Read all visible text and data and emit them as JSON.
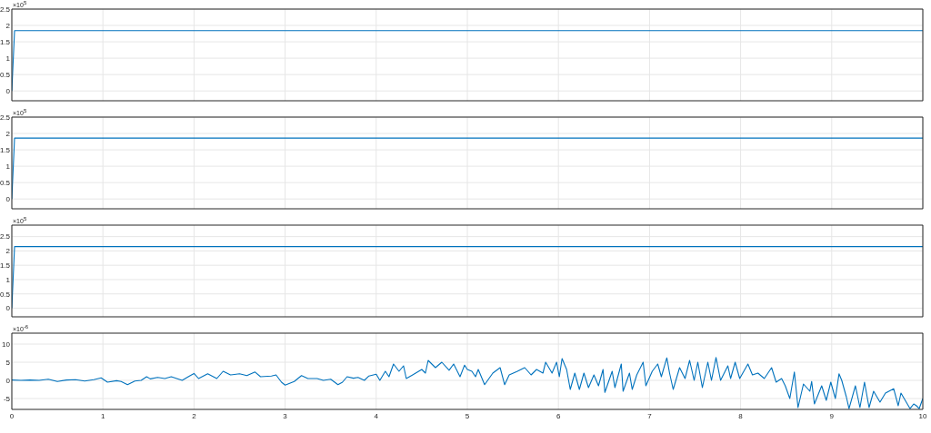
{
  "chart_data": [
    {
      "type": "line",
      "x": [
        0,
        0.03,
        10
      ],
      "values": [
        0,
        1.84,
        1.84
      ],
      "color": "#0072bd",
      "xlim": [
        0,
        10
      ],
      "xticks": [
        0,
        1,
        2,
        3,
        4,
        5,
        6,
        7,
        8,
        9,
        10
      ],
      "ylim": [
        -0.3,
        2.5
      ],
      "yticks": [
        0,
        0.5,
        1,
        1.5,
        2,
        2.5
      ],
      "grid": true,
      "tick_labels": "y",
      "annotations": [
        "×10$^{5}$"
      ]
    },
    {
      "type": "line",
      "x": [
        0,
        0.03,
        10
      ],
      "values": [
        0,
        1.86,
        1.86
      ],
      "color": "#0072bd",
      "xlim": [
        0,
        10
      ],
      "xticks": [
        0,
        1,
        2,
        3,
        4,
        5,
        6,
        7,
        8,
        9,
        10
      ],
      "ylim": [
        -0.3,
        2.5
      ],
      "yticks": [
        0,
        0.5,
        1,
        1.5,
        2,
        2.5
      ],
      "grid": true,
      "tick_labels": "y",
      "annotations": [
        "×10$^{5}$"
      ]
    },
    {
      "type": "line",
      "x": [
        0,
        0.03,
        10
      ],
      "values": [
        0,
        2.15,
        2.15
      ],
      "color": "#0072bd",
      "xlim": [
        0,
        10
      ],
      "xticks": [
        0,
        1,
        2,
        3,
        4,
        5,
        6,
        7,
        8,
        9,
        10
      ],
      "ylim": [
        -0.3,
        2.9
      ],
      "yticks": [
        0,
        0.5,
        1,
        1.5,
        2,
        2.5
      ],
      "grid": true,
      "tick_labels": "y",
      "annotations": [
        "×10$^{5}$"
      ]
    },
    {
      "type": "line",
      "x": [
        0,
        0.1,
        0.2,
        0.3,
        0.4,
        0.5,
        0.6,
        0.7,
        0.8,
        0.9,
        0.98,
        1.05,
        1.15,
        1.2,
        1.27,
        1.35,
        1.42,
        1.48,
        1.52,
        1.6,
        1.68,
        1.75,
        1.87,
        1.95,
        2.0,
        2.05,
        2.15,
        2.25,
        2.32,
        2.4,
        2.5,
        2.58,
        2.67,
        2.73,
        2.85,
        2.9,
        2.96,
        3.0,
        3.1,
        3.18,
        3.25,
        3.35,
        3.42,
        3.5,
        3.58,
        3.63,
        3.68,
        3.75,
        3.8,
        3.87,
        3.92,
        4.0,
        4.04,
        4.1,
        4.14,
        4.19,
        4.25,
        4.3,
        4.33,
        4.4,
        4.5,
        4.54,
        4.57,
        4.65,
        4.72,
        4.8,
        4.85,
        4.92,
        4.97,
        5.0,
        5.05,
        5.09,
        5.12,
        5.19,
        5.28,
        5.36,
        5.41,
        5.46,
        5.55,
        5.63,
        5.7,
        5.76,
        5.83,
        5.86,
        5.93,
        5.98,
        6.01,
        6.04,
        6.09,
        6.13,
        6.18,
        6.23,
        6.28,
        6.33,
        6.39,
        6.44,
        6.49,
        6.51,
        6.59,
        6.62,
        6.69,
        6.71,
        6.78,
        6.81,
        6.86,
        6.93,
        6.96,
        7.03,
        7.09,
        7.13,
        7.19,
        7.22,
        7.26,
        7.33,
        7.39,
        7.44,
        7.49,
        7.53,
        7.58,
        7.64,
        7.68,
        7.73,
        7.78,
        7.86,
        7.89,
        7.94,
        7.99,
        8.08,
        8.13,
        8.19,
        8.26,
        8.34,
        8.39,
        8.45,
        8.49,
        8.54,
        8.59,
        8.63,
        8.69,
        8.76,
        8.78,
        8.81,
        8.89,
        8.94,
        8.99,
        9.04,
        9.08,
        9.11,
        9.16,
        9.19,
        9.26,
        9.31,
        9.36,
        9.41,
        9.46,
        9.53,
        9.59,
        9.68,
        9.73,
        9.76,
        9.83,
        9.86,
        9.9,
        9.93,
        9.96,
        10.0
      ],
      "values": [
        0.1,
        0,
        0.1,
        0,
        0.3,
        -0.3,
        0.1,
        0.2,
        -0.2,
        0.2,
        0.7,
        -0.5,
        -0.1,
        -0.3,
        -1.2,
        -0.2,
        0,
        1.0,
        0.4,
        0.8,
        0.5,
        1.0,
        0,
        1.2,
        1.9,
        0.5,
        1.8,
        0.5,
        2.5,
        1.5,
        1.8,
        1.3,
        2.3,
        1.0,
        1.2,
        1.5,
        -0.5,
        -1.3,
        -0.3,
        1.3,
        0.5,
        0.5,
        0,
        0.3,
        -1.2,
        -0.5,
        1.0,
        0.6,
        0.8,
        0,
        1.2,
        1.7,
        0,
        2.5,
        1.0,
        4.5,
        2.5,
        4.0,
        0.5,
        1.5,
        3.0,
        2.0,
        5.5,
        3.5,
        5.0,
        2.8,
        4.5,
        1.0,
        4.2,
        3.0,
        2.5,
        1.0,
        3.0,
        -1.2,
        2.0,
        3.5,
        -1.2,
        1.5,
        2.5,
        3.5,
        1.5,
        3.0,
        2.0,
        5.0,
        2.0,
        5.0,
        1.0,
        6.0,
        3.0,
        -2.5,
        2.0,
        -2.5,
        2.0,
        -2.0,
        1.5,
        -1.5,
        3.0,
        -3.3,
        2.5,
        -2.0,
        4.5,
        -3.0,
        2.0,
        -2.5,
        1.5,
        5.0,
        -1.5,
        2.5,
        4.5,
        1.0,
        6.2,
        2.0,
        -2.5,
        3.5,
        0.5,
        5.5,
        0,
        5.0,
        -2.0,
        5.0,
        0,
        6.3,
        0,
        4.0,
        0.5,
        5.0,
        0.5,
        4.5,
        1.5,
        2.0,
        0.5,
        3.5,
        -0.5,
        0.5,
        -1.5,
        -5.0,
        2.3,
        -7.5,
        -1.0,
        -3.0,
        -0.3,
        -6.5,
        -1.5,
        -5.5,
        -0.5,
        -5.0,
        1.8,
        0,
        -4.5,
        -7.8,
        -1.5,
        -7.5,
        -0.5,
        -7.5,
        -3.0,
        -6.0,
        -3.5,
        -2.3,
        -7.0,
        -3.5,
        -6.5,
        -7.8,
        -6.5,
        -7.0,
        -7.8,
        -5.0
      ],
      "color": "#0072bd",
      "xlim": [
        0,
        10
      ],
      "xticks": [
        0,
        1,
        2,
        3,
        4,
        5,
        6,
        7,
        8,
        9,
        10
      ],
      "ylim": [
        -8,
        13
      ],
      "yticks": [
        -5,
        0,
        5,
        10
      ],
      "grid": true,
      "annotations": [
        "×10$^{-6}$"
      ]
    }
  ]
}
